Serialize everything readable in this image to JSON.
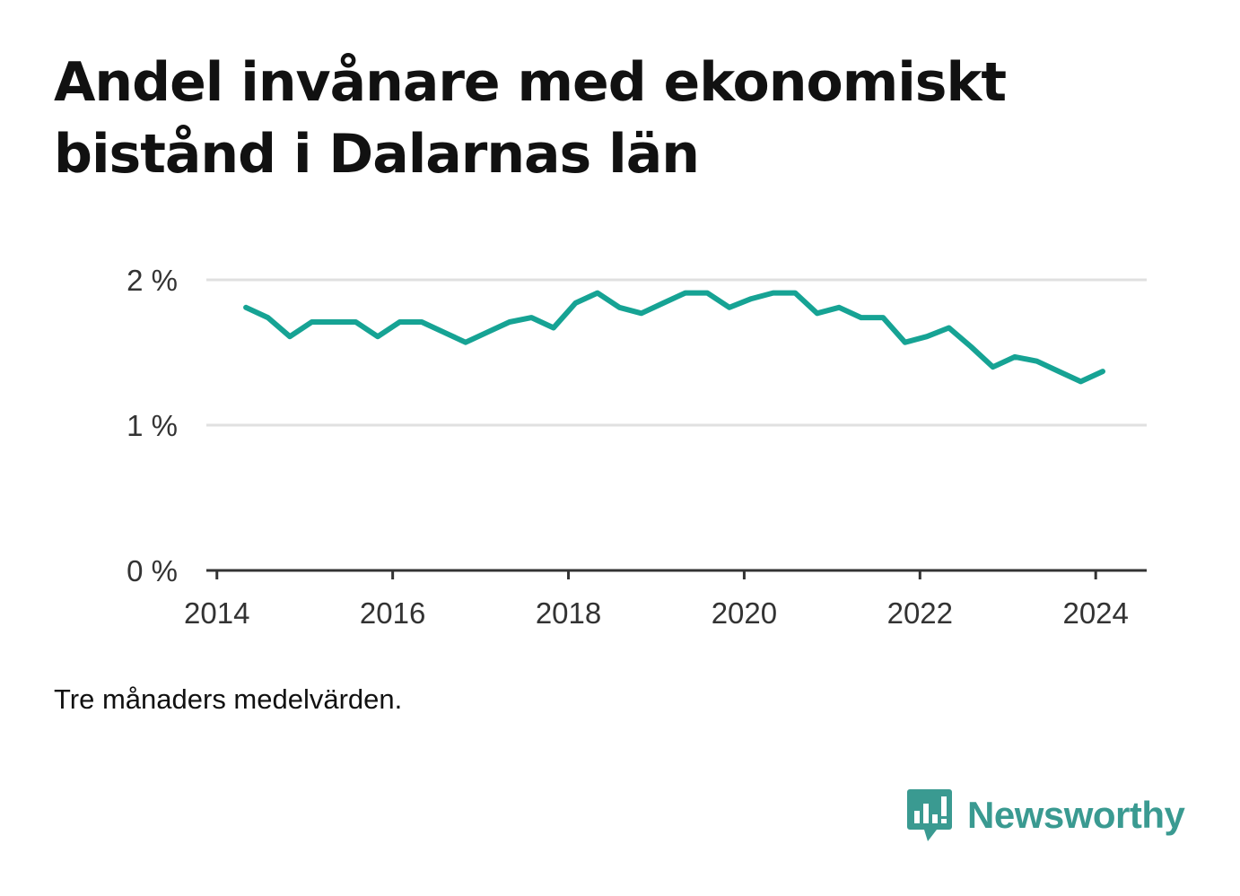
{
  "title": "Andel invånare med ekonomiskt bistånd i Dalarnas län",
  "note": "Tre månaders medelvärden.",
  "brand": {
    "name": "Newsworthy",
    "icon": "newsworthy-logo-icon",
    "color": "#3a9a91"
  },
  "colors": {
    "line": "#16a394",
    "grid": "#e0e0e0",
    "axis": "#333333",
    "tick_text": "#333333"
  },
  "chart_data": {
    "type": "line",
    "title": "Andel invånare med ekonomiskt bistånd i Dalarnas län",
    "xlabel": "",
    "ylabel": "",
    "x_ticks": [
      {
        "value": 2014,
        "label": "2014"
      },
      {
        "value": 2016,
        "label": "2016"
      },
      {
        "value": 2018,
        "label": "2018"
      },
      {
        "value": 2020,
        "label": "2020"
      },
      {
        "value": 2022,
        "label": "2022"
      },
      {
        "value": 2024,
        "label": "2024"
      }
    ],
    "y_ticks": [
      {
        "value": 0,
        "label": "0 %"
      },
      {
        "value": 1,
        "label": "1 %"
      },
      {
        "value": 2,
        "label": "2 %"
      }
    ],
    "xlim": [
      2013.88,
      2024.58
    ],
    "ylim": [
      0,
      2
    ],
    "grid": true,
    "series": [
      {
        "name": "",
        "x": [
          2014.33,
          2014.58,
          2014.83,
          2015.08,
          2015.33,
          2015.58,
          2015.83,
          2016.08,
          2016.33,
          2016.58,
          2016.83,
          2017.08,
          2017.33,
          2017.58,
          2017.83,
          2018.08,
          2018.33,
          2018.58,
          2018.83,
          2019.08,
          2019.33,
          2019.58,
          2019.83,
          2020.08,
          2020.33,
          2020.58,
          2020.83,
          2021.08,
          2021.33,
          2021.58,
          2021.83,
          2022.08,
          2022.33,
          2022.58,
          2022.83,
          2023.08,
          2023.33,
          2023.58,
          2023.83,
          2024.08
        ],
        "values": [
          1.81,
          1.74,
          1.61,
          1.71,
          1.71,
          1.71,
          1.61,
          1.71,
          1.71,
          1.64,
          1.57,
          1.64,
          1.71,
          1.74,
          1.67,
          1.84,
          1.91,
          1.81,
          1.77,
          1.84,
          1.91,
          1.91,
          1.81,
          1.87,
          1.91,
          1.91,
          1.77,
          1.81,
          1.74,
          1.74,
          1.57,
          1.61,
          1.67,
          1.54,
          1.4,
          1.47,
          1.44,
          1.37,
          1.3,
          1.37
        ]
      }
    ]
  }
}
